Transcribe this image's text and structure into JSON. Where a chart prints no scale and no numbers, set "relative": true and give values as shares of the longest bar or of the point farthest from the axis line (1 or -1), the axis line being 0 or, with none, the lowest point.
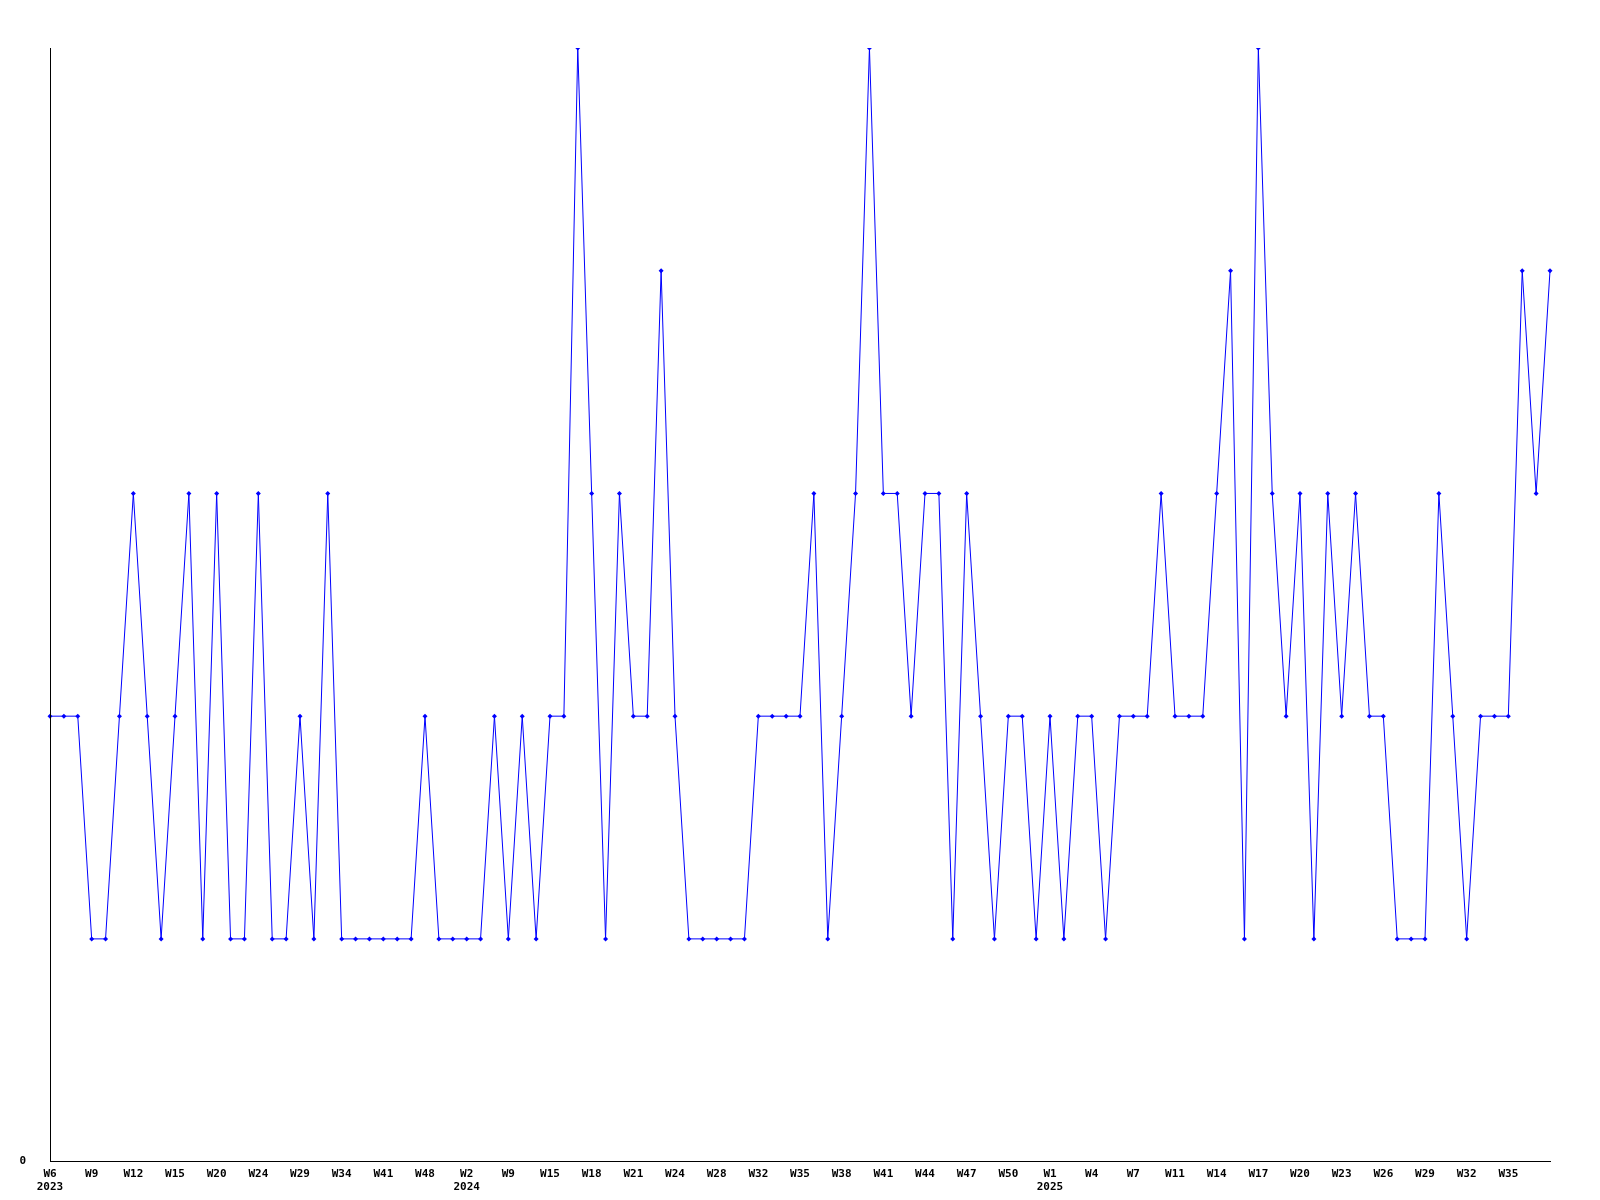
{
  "chart_data": {
    "type": "line",
    "relative": true,
    "color": "#0000ff",
    "marker": "diamond",
    "legend": false,
    "grid": false,
    "annotations": [
      "0"
    ],
    "categories": [
      "W6\n2023",
      null,
      null,
      "W9",
      null,
      null,
      "W12",
      null,
      null,
      "W15",
      null,
      null,
      "W20",
      null,
      null,
      "W24",
      null,
      null,
      "W29",
      null,
      null,
      "W34",
      null,
      null,
      "W41",
      null,
      null,
      "W48",
      null,
      null,
      "W2\n2024",
      null,
      null,
      "W9",
      null,
      null,
      "W15",
      null,
      null,
      "W18",
      null,
      null,
      "W21",
      null,
      null,
      "W24",
      null,
      null,
      "W28",
      null,
      null,
      "W32",
      null,
      null,
      "W35",
      null,
      null,
      "W38",
      null,
      null,
      "W41",
      null,
      null,
      "W44",
      null,
      null,
      "W47",
      null,
      null,
      "W50",
      null,
      null,
      "W1\n2025",
      null,
      null,
      "W4",
      null,
      null,
      "W7",
      null,
      null,
      "W11",
      null,
      null,
      "W14",
      null,
      null,
      "W17",
      null,
      null,
      "W20",
      null,
      null,
      "W23",
      null,
      null,
      "W26",
      null,
      null,
      "W29",
      null,
      null,
      "W32",
      null,
      null,
      "W35",
      null,
      null,
      null
    ],
    "values": [
      0.4,
      0.4,
      0.4,
      0.2,
      0.2,
      0.4,
      0.6,
      0.4,
      0.2,
      0.4,
      0.6,
      0.2,
      0.6,
      0.2,
      0.2,
      0.6,
      0.2,
      0.2,
      0.4,
      0.2,
      0.6,
      0.2,
      0.2,
      0.2,
      0.2,
      0.2,
      0.2,
      0.4,
      0.2,
      0.2,
      0.2,
      0.2,
      0.4,
      0.2,
      0.4,
      0.2,
      0.4,
      0.4,
      1,
      0.6,
      0.2,
      0.6,
      0.4,
      0.4,
      0.8,
      0.4,
      0.2,
      0.2,
      0.2,
      0.2,
      0.2,
      0.4,
      0.4,
      0.4,
      0.4,
      0.6,
      0.2,
      0.4,
      0.6,
      1,
      0.6,
      0.6,
      0.4,
      0.6,
      0.6,
      0.2,
      0.6,
      0.4,
      0.2,
      0.4,
      0.4,
      0.2,
      0.4,
      0.2,
      0.4,
      0.4,
      0.2,
      0.4,
      0.4,
      0.4,
      0.6,
      0.4,
      0.4,
      0.4,
      0.6,
      0.8,
      0.2,
      1,
      0.6,
      0.4,
      0.6,
      0.2,
      0.6,
      0.4,
      0.6,
      0.4,
      0.4,
      0.2,
      0.2,
      0.2,
      0.6,
      0.4,
      0.2,
      0.4,
      0.4,
      0.4,
      0.8,
      0.6,
      0.8
    ]
  }
}
